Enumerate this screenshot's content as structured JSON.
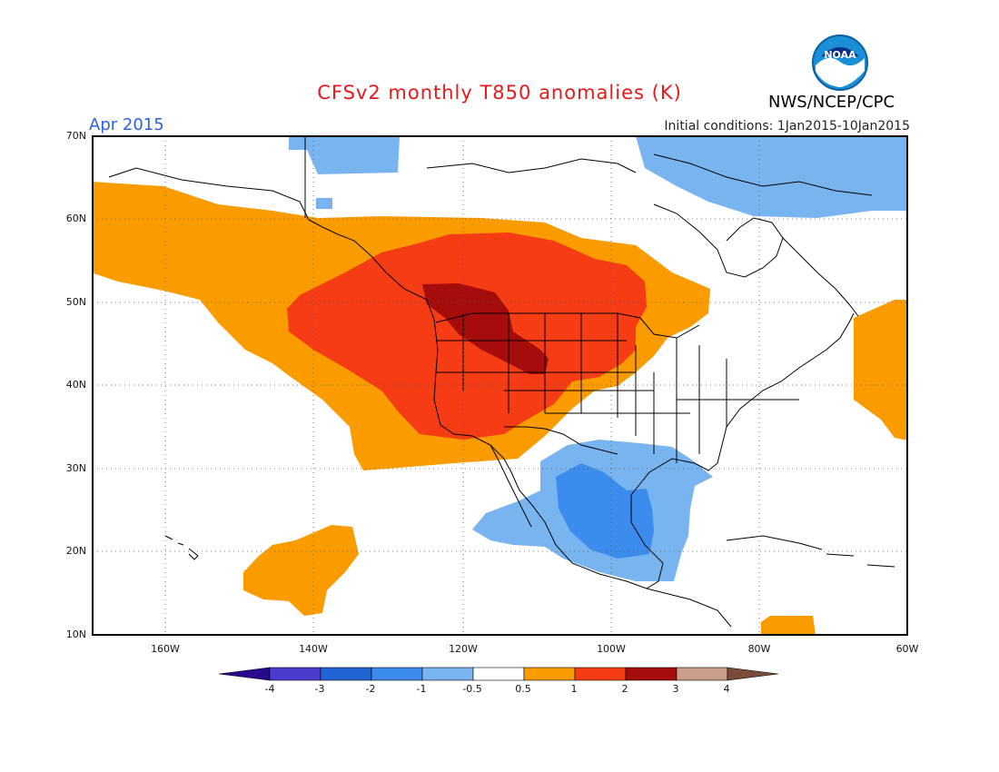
{
  "header": {
    "title": "CFSv2 monthly T850 anomalies (K)",
    "agency": "NWS/NCEP/CPC",
    "month": "Apr 2015",
    "initial_conditions": "Initial conditions: 1Jan2015-10Jan2015",
    "logo_text": "NOAA"
  },
  "map": {
    "lon_range": [
      -172,
      -60
    ],
    "lat_range": [
      10,
      70
    ],
    "lat_labels": [
      "70N",
      "60N",
      "50N",
      "40N",
      "30N",
      "20N",
      "10N"
    ],
    "lon_labels": [
      "160W",
      "140W",
      "120W",
      "100W",
      "80W",
      "60W"
    ],
    "colors": {
      "strong_warm": "#a50c0c",
      "warm2": "#f53c14",
      "warm1": "#fa9c00",
      "cool1": "#78b4f0",
      "cool2": "#3c8ced"
    }
  },
  "colorbar": {
    "labels": [
      "-4",
      "-3",
      "-2",
      "-1",
      "-0.5",
      "0.5",
      "1",
      "2",
      "3",
      "4"
    ],
    "colors": [
      "#2a0a8c",
      "#4b3ccf",
      "#1f64d2",
      "#3c8ced",
      "#78b4f0",
      "#ffffff",
      "#fa9c00",
      "#f53c14",
      "#a50c0c",
      "#c8a08c",
      "#7a4a3a"
    ]
  }
}
